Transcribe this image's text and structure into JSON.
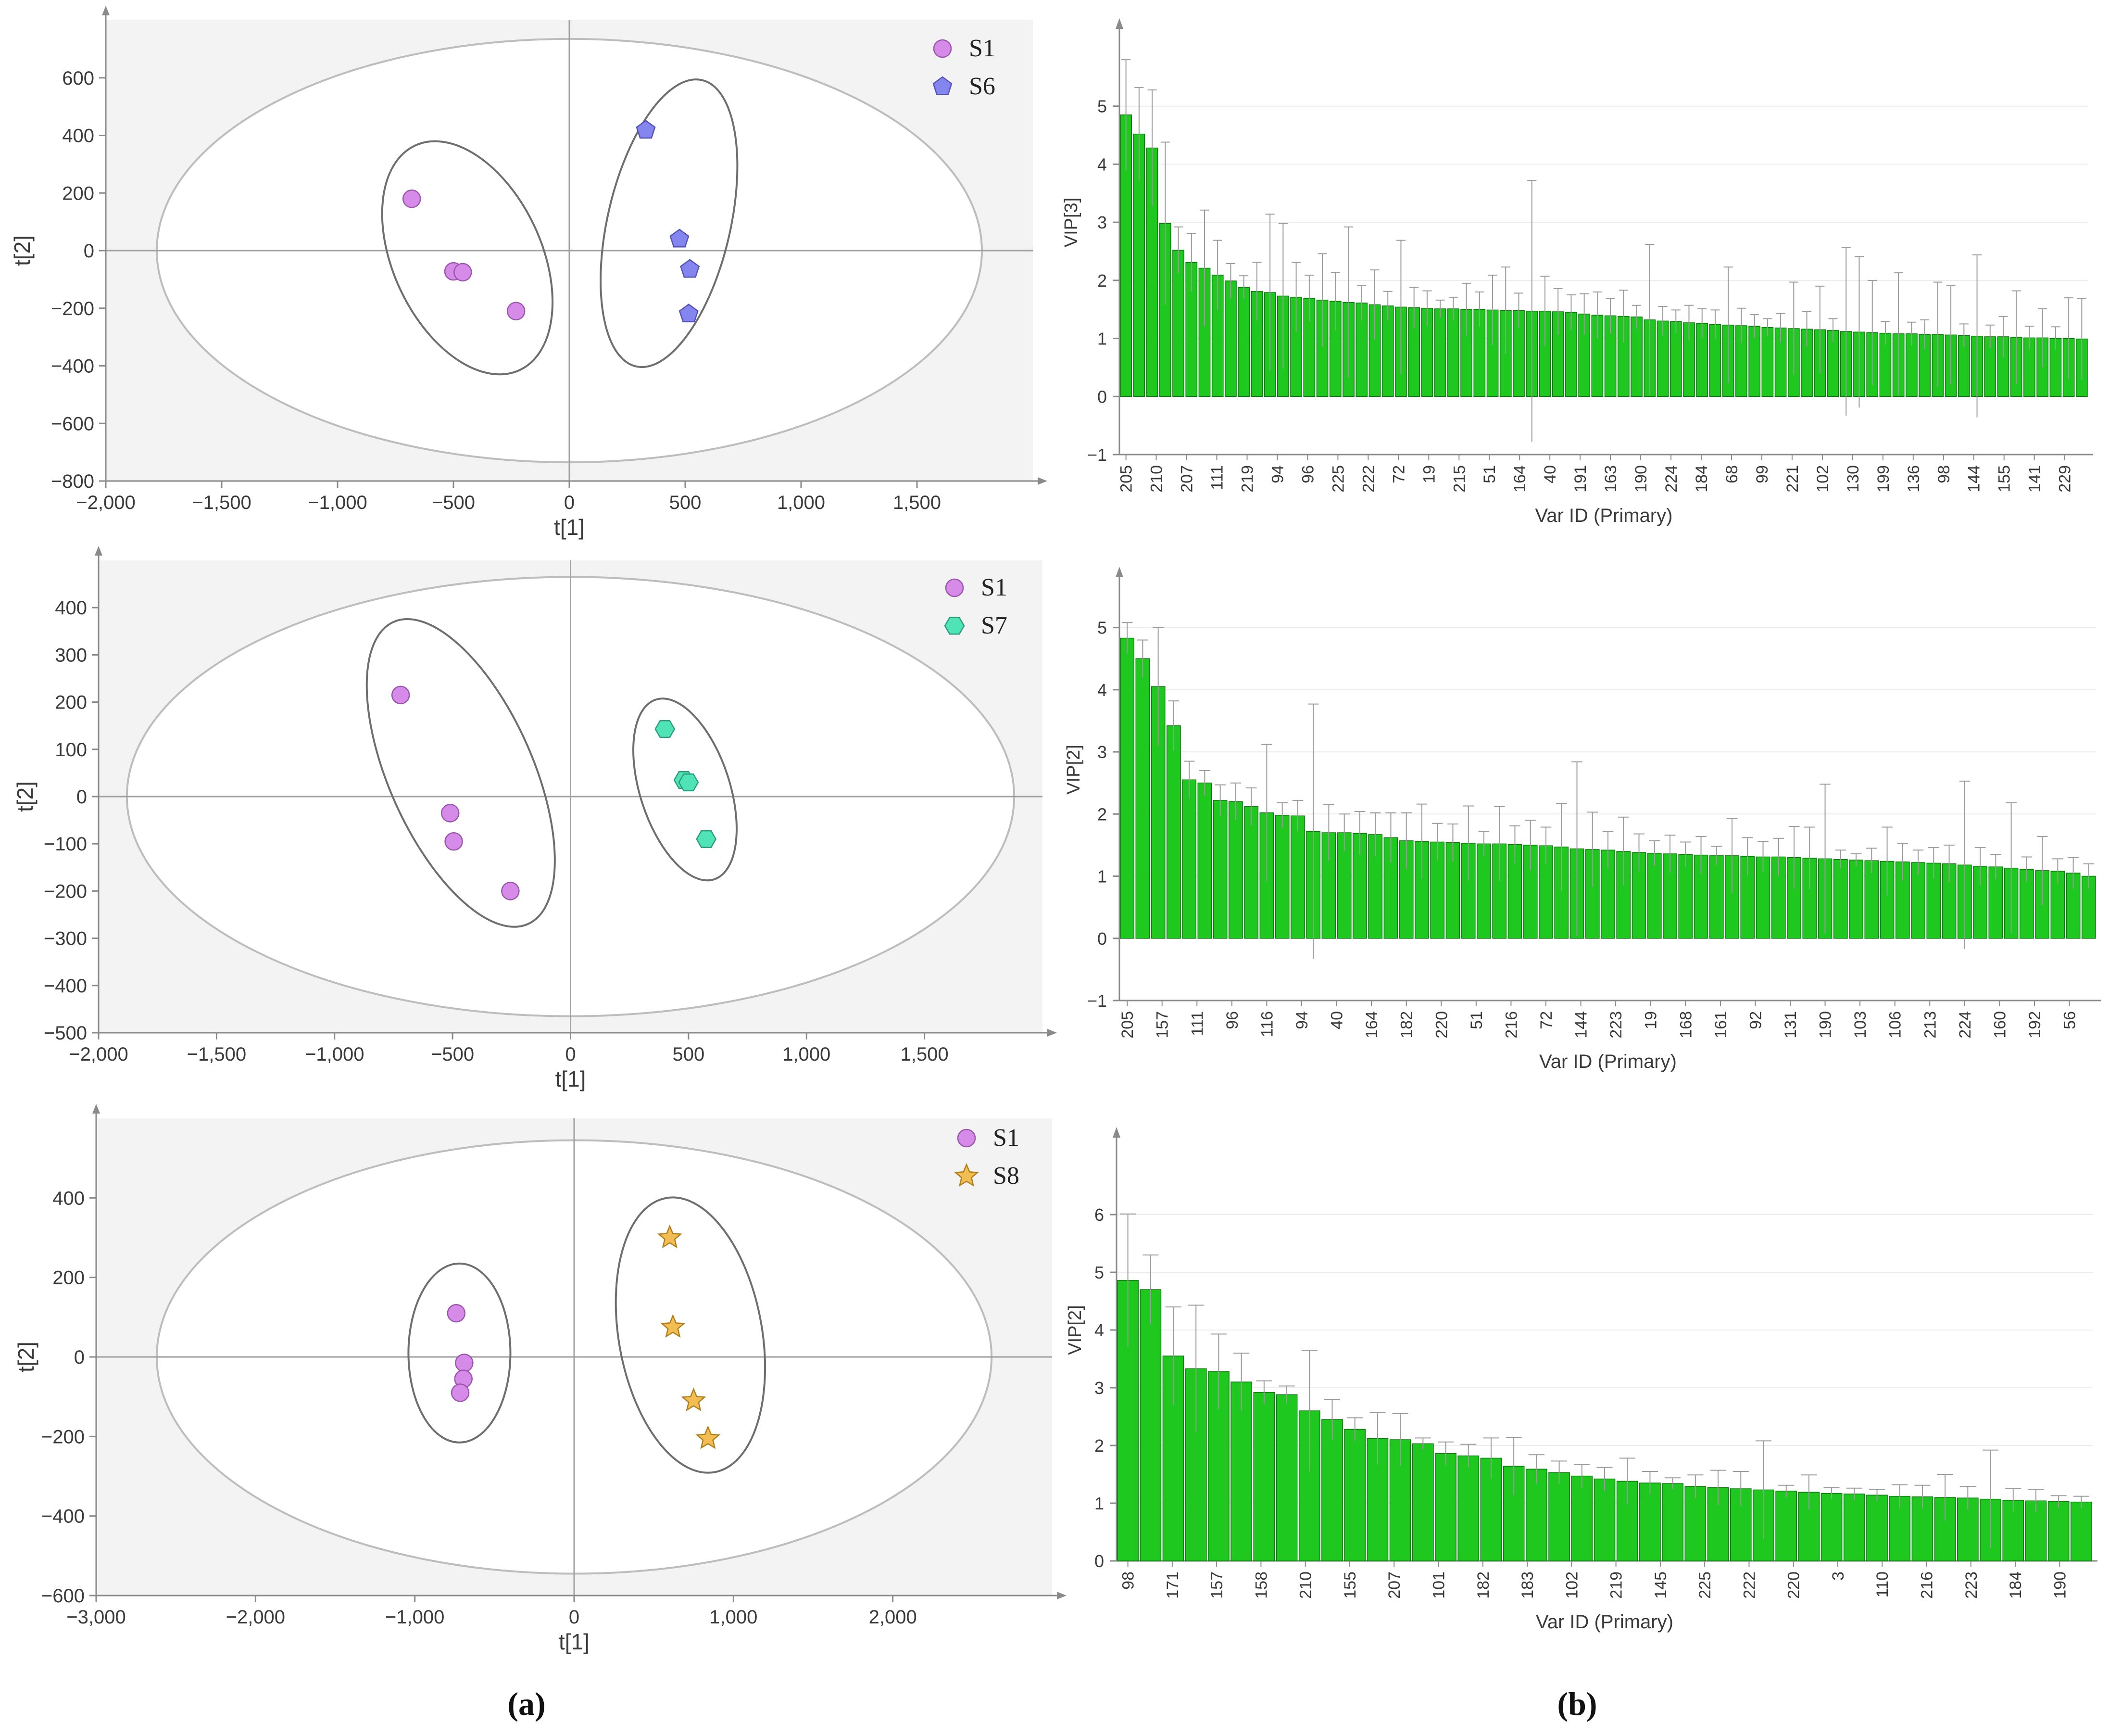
{
  "panel_labels": {
    "a": "(a)",
    "b": "(b)"
  },
  "colors": {
    "grid_bg": "#f3f3f3",
    "axis": "#8a8a8a",
    "ellipse": "#bdbdbd",
    "group_ellipse": "#6e6e6e",
    "bar_fill": "#1ec81e",
    "bar_stroke": "#0b7a0b",
    "errorbar": "#9a9a9a",
    "s1": "#d68be9",
    "s6": "#8585ef",
    "s7": "#4fe3b6",
    "s8": "#f2bd52"
  },
  "chart_data": [
    {
      "id": "scores-s1-s6",
      "type": "scatter",
      "xlabel": "t[1]",
      "ylabel": "t[2]",
      "xlim": [
        -2000,
        2000
      ],
      "ylim": [
        -800,
        800
      ],
      "xticks": [
        -2000,
        -1500,
        -1000,
        -500,
        0,
        500,
        1000,
        1500
      ],
      "xtick_labels": [
        "−2,000",
        "−1,500",
        "−1,000",
        "−500",
        "0",
        "500",
        "1,000",
        "1,500"
      ],
      "yticks": [
        -800,
        -600,
        -400,
        -200,
        0,
        200,
        400,
        600
      ],
      "ytick_labels": [
        "−800",
        "−600",
        "−400",
        "−200",
        "0",
        "200",
        "400",
        "600"
      ],
      "confidence_ellipse": {
        "center": [
          0,
          0
        ],
        "rx": 1780,
        "ry": 735
      },
      "series": [
        {
          "name": "S1",
          "marker": "circle",
          "color": "#d68be9",
          "points": [
            [
              -680,
              180
            ],
            [
              -500,
              -72
            ],
            [
              -460,
              -75
            ],
            [
              -230,
              -210
            ]
          ],
          "group_ellipse": {
            "center": [
              -440,
              -25
            ],
            "rx": 320,
            "ry": 430,
            "angle_deg": -25
          }
        },
        {
          "name": "S6",
          "marker": "pentagon",
          "color": "#8585ef",
          "points": [
            [
              330,
              418
            ],
            [
              475,
              40
            ],
            [
              520,
              -65
            ],
            [
              515,
              -220
            ]
          ],
          "group_ellipse": {
            "center": [
              430,
              95
            ],
            "rx": 265,
            "ry": 510,
            "angle_deg": 13
          }
        }
      ]
    },
    {
      "id": "scores-s1-s7",
      "type": "scatter",
      "xlabel": "t[1]",
      "ylabel": "t[2]",
      "xlim": [
        -2000,
        2000
      ],
      "ylim": [
        -500,
        500
      ],
      "xticks": [
        -2000,
        -1500,
        -1000,
        -500,
        0,
        500,
        1000,
        1500
      ],
      "xtick_labels": [
        "−2,000",
        "−1,500",
        "−1,000",
        "−500",
        "0",
        "500",
        "1,000",
        "1,500"
      ],
      "yticks": [
        -500,
        -400,
        -300,
        -200,
        -100,
        0,
        100,
        200,
        300,
        400
      ],
      "ytick_labels": [
        "−500",
        "−400",
        "−300",
        "−200",
        "−100",
        "0",
        "100",
        "200",
        "300",
        "400"
      ],
      "confidence_ellipse": {
        "center": [
          0,
          0
        ],
        "rx": 1880,
        "ry": 465
      },
      "series": [
        {
          "name": "S1",
          "marker": "circle",
          "color": "#d68be9",
          "points": [
            [
              -720,
              215
            ],
            [
              -510,
              -35
            ],
            [
              -495,
              -95
            ],
            [
              -255,
              -200
            ]
          ],
          "group_ellipse": {
            "center": [
              -465,
              50
            ],
            "rx": 305,
            "ry": 350,
            "angle_deg": -24
          }
        },
        {
          "name": "S7",
          "marker": "hexagon",
          "color": "#4fe3b6",
          "points": [
            [
              400,
              143
            ],
            [
              480,
              35
            ],
            [
              500,
              30
            ],
            [
              575,
              -90
            ]
          ],
          "group_ellipse": {
            "center": [
              485,
              15
            ],
            "rx": 190,
            "ry": 200,
            "angle_deg": -18
          }
        }
      ]
    },
    {
      "id": "scores-s1-s8",
      "type": "scatter",
      "xlabel": "t[1]",
      "ylabel": "t[2]",
      "xlim": [
        -3000,
        3000
      ],
      "ylim": [
        -600,
        600
      ],
      "xticks": [
        -3000,
        -2000,
        -1000,
        0,
        1000,
        2000
      ],
      "xtick_labels": [
        "−3,000",
        "−2,000",
        "−1,000",
        "0",
        "1,000",
        "2,000"
      ],
      "yticks": [
        -600,
        -400,
        -200,
        0,
        200,
        400
      ],
      "ytick_labels": [
        "−600",
        "−400",
        "−200",
        "0",
        "200",
        "400"
      ],
      "confidence_ellipse": {
        "center": [
          0,
          0
        ],
        "rx": 2620,
        "ry": 545
      },
      "series": [
        {
          "name": "S1",
          "marker": "circle",
          "color": "#d68be9",
          "points": [
            [
              -740,
              110
            ],
            [
              -690,
              -15
            ],
            [
              -695,
              -55
            ],
            [
              -715,
              -90
            ]
          ],
          "group_ellipse": {
            "center": [
              -720,
              10
            ],
            "rx": 320,
            "ry": 225,
            "angle_deg": 0
          }
        },
        {
          "name": "S8",
          "marker": "star",
          "color": "#f2bd52",
          "points": [
            [
              600,
              300
            ],
            [
              620,
              75
            ],
            [
              750,
              -110
            ],
            [
              840,
              -205
            ]
          ],
          "group_ellipse": {
            "center": [
              730,
              55
            ],
            "rx": 450,
            "ry": 350,
            "angle_deg": -10
          }
        }
      ]
    },
    {
      "id": "vip-s1-s6",
      "type": "bar",
      "xlabel": "Var ID (Primary)",
      "ylabel": "VIP[3]",
      "ylim": [
        -1,
        6
      ],
      "yticks": [
        -1,
        0,
        1,
        2,
        3,
        4,
        5
      ],
      "tick_labels": [
        "205",
        "210",
        "207",
        "111",
        "219",
        "94",
        "96",
        "225",
        "222",
        "72",
        "19",
        "215",
        "51",
        "164",
        "40",
        "191",
        "163",
        "190",
        "224",
        "184",
        "68",
        "99",
        "221",
        "102",
        "130",
        "199",
        "136",
        "98",
        "144",
        "155",
        "141",
        "229"
      ],
      "values": [
        4.85,
        4.52,
        4.28,
        2.98,
        2.52,
        2.31,
        2.21,
        2.09,
        1.99,
        1.88,
        1.81,
        1.79,
        1.73,
        1.71,
        1.69,
        1.66,
        1.64,
        1.62,
        1.61,
        1.58,
        1.56,
        1.54,
        1.53,
        1.52,
        1.51,
        1.51,
        1.5,
        1.5,
        1.49,
        1.48,
        1.48,
        1.47,
        1.47,
        1.46,
        1.45,
        1.42,
        1.4,
        1.39,
        1.38,
        1.37,
        1.32,
        1.3,
        1.29,
        1.27,
        1.26,
        1.24,
        1.23,
        1.22,
        1.21,
        1.19,
        1.18,
        1.17,
        1.16,
        1.15,
        1.14,
        1.12,
        1.11,
        1.1,
        1.09,
        1.08,
        1.08,
        1.07,
        1.07,
        1.06,
        1.05,
        1.04,
        1.03,
        1.03,
        1.02,
        1.01,
        1.01,
        1.0,
        1.0,
        0.99
      ],
      "errors": [
        0.95,
        0.8,
        1.0,
        1.4,
        0.4,
        0.5,
        1.0,
        0.6,
        0.3,
        0.2,
        0.5,
        1.35,
        1.25,
        0.6,
        0.4,
        0.8,
        0.5,
        1.3,
        0.3,
        0.6,
        0.25,
        1.15,
        0.35,
        0.3,
        0.15,
        0.2,
        0.45,
        0.3,
        0.6,
        0.75,
        0.3,
        2.25,
        0.6,
        0.4,
        0.3,
        0.35,
        0.4,
        0.3,
        0.45,
        0.2,
        1.3,
        0.25,
        0.2,
        0.3,
        0.25,
        0.25,
        1.0,
        0.3,
        0.2,
        0.15,
        0.25,
        0.8,
        0.3,
        0.75,
        0.2,
        1.45,
        1.3,
        0.9,
        0.2,
        1.05,
        0.2,
        0.25,
        0.9,
        0.85,
        0.2,
        1.4,
        0.2,
        0.35,
        0.8,
        0.2,
        0.5,
        0.2,
        0.7,
        0.7
      ]
    },
    {
      "id": "vip-s1-s7",
      "type": "bar",
      "xlabel": "Var ID (Primary)",
      "ylabel": "VIP[2]",
      "ylim": [
        -1,
        5.5
      ],
      "yticks": [
        -1,
        0,
        1,
        2,
        3,
        4,
        5
      ],
      "tick_labels": [
        "205",
        "157",
        "111",
        "96",
        "116",
        "94",
        "40",
        "164",
        "182",
        "220",
        "51",
        "216",
        "72",
        "144",
        "223",
        "19",
        "168",
        "161",
        "92",
        "131",
        "190",
        "103",
        "106",
        "213",
        "224",
        "160",
        "192",
        "56"
      ],
      "values": [
        4.83,
        4.5,
        4.05,
        3.42,
        2.55,
        2.5,
        2.22,
        2.2,
        2.12,
        2.02,
        1.98,
        1.97,
        1.72,
        1.7,
        1.7,
        1.69,
        1.67,
        1.62,
        1.57,
        1.56,
        1.55,
        1.54,
        1.53,
        1.52,
        1.52,
        1.51,
        1.5,
        1.49,
        1.47,
        1.44,
        1.43,
        1.42,
        1.4,
        1.38,
        1.37,
        1.36,
        1.35,
        1.34,
        1.33,
        1.33,
        1.32,
        1.31,
        1.31,
        1.3,
        1.29,
        1.28,
        1.27,
        1.26,
        1.25,
        1.24,
        1.23,
        1.22,
        1.21,
        1.2,
        1.18,
        1.16,
        1.15,
        1.13,
        1.11,
        1.09,
        1.08,
        1.05,
        1.0
      ],
      "errors": [
        0.25,
        0.3,
        0.95,
        0.4,
        0.3,
        0.2,
        0.25,
        0.3,
        0.3,
        1.1,
        0.2,
        0.25,
        2.05,
        0.45,
        0.3,
        0.35,
        0.35,
        0.4,
        0.45,
        0.6,
        0.3,
        0.3,
        0.6,
        0.2,
        0.6,
        0.3,
        0.4,
        0.3,
        0.7,
        1.4,
        0.6,
        0.3,
        0.55,
        0.3,
        0.2,
        0.3,
        0.2,
        0.3,
        0.15,
        0.6,
        0.3,
        0.25,
        0.3,
        0.5,
        0.5,
        1.2,
        0.15,
        0.1,
        0.2,
        0.55,
        0.3,
        0.2,
        0.25,
        0.3,
        1.35,
        0.3,
        0.2,
        1.05,
        0.2,
        0.55,
        0.2,
        0.25,
        0.2
      ]
    },
    {
      "id": "vip-s1-s8",
      "type": "bar",
      "xlabel": "Var ID (Primary)",
      "ylabel": "VIP[2]",
      "ylim": [
        0,
        7
      ],
      "yticks": [
        0,
        1,
        2,
        3,
        4,
        5,
        6
      ],
      "tick_labels": [
        "98",
        "171",
        "157",
        "158",
        "210",
        "155",
        "207",
        "101",
        "182",
        "183",
        "102",
        "219",
        "145",
        "225",
        "222",
        "220",
        "3",
        "110",
        "216",
        "223",
        "184",
        "190"
      ],
      "values": [
        4.86,
        4.7,
        3.55,
        3.33,
        3.28,
        3.1,
        2.92,
        2.88,
        2.6,
        2.45,
        2.28,
        2.12,
        2.1,
        2.03,
        1.86,
        1.82,
        1.78,
        1.64,
        1.59,
        1.53,
        1.47,
        1.42,
        1.38,
        1.35,
        1.34,
        1.29,
        1.27,
        1.25,
        1.23,
        1.21,
        1.19,
        1.17,
        1.16,
        1.14,
        1.12,
        1.11,
        1.1,
        1.09,
        1.07,
        1.05,
        1.04,
        1.03,
        1.02
      ],
      "errors": [
        1.15,
        0.6,
        0.85,
        1.1,
        0.65,
        0.5,
        0.2,
        0.15,
        1.05,
        0.35,
        0.2,
        0.45,
        0.45,
        0.1,
        0.2,
        0.2,
        0.35,
        0.5,
        0.25,
        0.2,
        0.2,
        0.2,
        0.4,
        0.2,
        0.1,
        0.2,
        0.3,
        0.3,
        0.85,
        0.1,
        0.3,
        0.1,
        0.1,
        0.1,
        0.2,
        0.2,
        0.4,
        0.2,
        0.85,
        0.2,
        0.2,
        0.1,
        0.1
      ]
    }
  ]
}
